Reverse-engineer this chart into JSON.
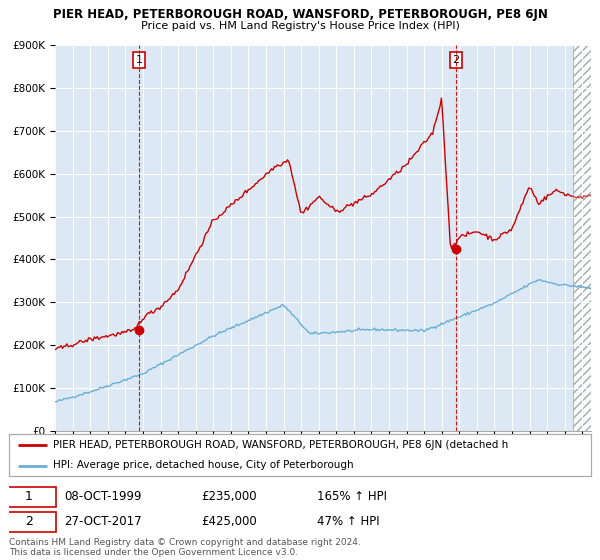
{
  "title": "PIER HEAD, PETERBOROUGH ROAD, WANSFORD, PETERBOROUGH, PE8 6JN",
  "subtitle": "Price paid vs. HM Land Registry's House Price Index (HPI)",
  "legend_line1": "PIER HEAD, PETERBOROUGH ROAD, WANSFORD, PETERBOROUGH, PE8 6JN (detached h",
  "legend_line2": "HPI: Average price, detached house, City of Peterborough",
  "sale1_date": "08-OCT-1999",
  "sale1_price": "£235,000",
  "sale1_hpi": "165% ↑ HPI",
  "sale2_date": "27-OCT-2017",
  "sale2_price": "£425,000",
  "sale2_hpi": "47% ↑ HPI",
  "footer": "Contains HM Land Registry data © Crown copyright and database right 2024.\nThis data is licensed under the Open Government Licence v3.0.",
  "sale1_year": 1999.77,
  "sale1_value": 235000,
  "sale2_year": 2017.82,
  "sale2_value": 425000,
  "hpi_color": "#6baed6",
  "property_color": "#cc0000",
  "background_color": "#dce9f5",
  "grid_color": "#ffffff",
  "ylim": [
    0,
    900000
  ],
  "xlim_start": 1995.0,
  "xlim_end": 2025.5,
  "hatch_start": 2024.5
}
